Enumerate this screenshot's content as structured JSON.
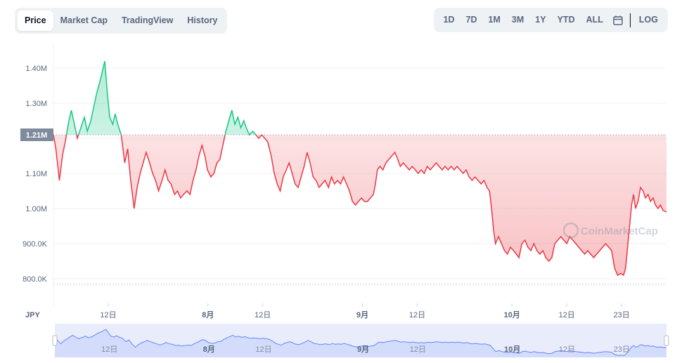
{
  "tabs": [
    "Price",
    "Market Cap",
    "TradingView",
    "History"
  ],
  "active_tab": 0,
  "ranges": [
    "1D",
    "7D",
    "1M",
    "3M",
    "1Y",
    "YTD",
    "ALL",
    "LOG"
  ],
  "icons": {
    "calendar": "calendar-icon"
  },
  "watermark": "CoinMarketCap",
  "colors": {
    "up": "#16c784",
    "down": "#ea3943",
    "nav": "#6188ff",
    "tag": "#808a9d"
  },
  "chart_data": {
    "type": "line",
    "currency": "JPY",
    "y_ticks": [
      "1.40M",
      "1.30M",
      "1.20M",
      "1.10M",
      "1.00M",
      "900.0K",
      "800.0K"
    ],
    "y_tick_values": [
      1400000,
      1300000,
      1200000,
      1100000,
      1000000,
      900000,
      800000
    ],
    "ylim": [
      730000,
      1470000
    ],
    "baseline_value": 1210000,
    "baseline_label": "1.21M",
    "x_ticks": [
      "12日",
      "8月",
      "12日",
      "9月",
      "12日",
      "10月",
      "12日",
      "23日"
    ],
    "x_tick_bold": [
      false,
      true,
      false,
      true,
      false,
      true,
      false,
      false
    ],
    "x_tick_days": [
      11,
      31,
      42,
      62,
      73,
      92,
      103,
      114
    ],
    "x_range_days": [
      0,
      123
    ],
    "series": [
      {
        "points": [
          [
            0,
            1210000
          ],
          [
            0.5,
            1170000
          ],
          [
            1.2,
            1080000
          ],
          [
            1.8,
            1150000
          ],
          [
            2.5,
            1200000
          ],
          [
            3.1,
            1250000
          ],
          [
            3.6,
            1280000
          ],
          [
            4.2,
            1240000
          ],
          [
            4.8,
            1200000
          ],
          [
            5.5,
            1230000
          ],
          [
            6.2,
            1260000
          ],
          [
            6.8,
            1220000
          ],
          [
            7.5,
            1250000
          ],
          [
            8.1,
            1290000
          ],
          [
            8.7,
            1330000
          ],
          [
            9.3,
            1360000
          ],
          [
            9.8,
            1390000
          ],
          [
            10.3,
            1420000
          ],
          [
            10.8,
            1330000
          ],
          [
            11.3,
            1260000
          ],
          [
            11.9,
            1240000
          ],
          [
            12.4,
            1270000
          ],
          [
            12.9,
            1240000
          ],
          [
            13.6,
            1210000
          ],
          [
            14.3,
            1130000
          ],
          [
            14.9,
            1170000
          ],
          [
            15.5,
            1080000
          ],
          [
            16.2,
            1000000
          ],
          [
            16.8,
            1060000
          ],
          [
            17.4,
            1100000
          ],
          [
            18.0,
            1130000
          ],
          [
            18.6,
            1160000
          ],
          [
            19.3,
            1130000
          ],
          [
            19.9,
            1100000
          ],
          [
            20.5,
            1080000
          ],
          [
            21.1,
            1050000
          ],
          [
            21.8,
            1080000
          ],
          [
            22.4,
            1110000
          ],
          [
            23.0,
            1080000
          ],
          [
            23.6,
            1070000
          ],
          [
            24.3,
            1040000
          ],
          [
            24.9,
            1050000
          ],
          [
            25.5,
            1030000
          ],
          [
            26.1,
            1040000
          ],
          [
            26.8,
            1050000
          ],
          [
            27.4,
            1040000
          ],
          [
            28.0,
            1080000
          ],
          [
            28.6,
            1110000
          ],
          [
            29.2,
            1150000
          ],
          [
            29.8,
            1180000
          ],
          [
            30.4,
            1150000
          ],
          [
            30.9,
            1110000
          ],
          [
            31.6,
            1090000
          ],
          [
            32.2,
            1100000
          ],
          [
            32.8,
            1130000
          ],
          [
            33.4,
            1140000
          ],
          [
            34.0,
            1180000
          ],
          [
            34.6,
            1220000
          ],
          [
            35.2,
            1250000
          ],
          [
            35.8,
            1280000
          ],
          [
            36.4,
            1240000
          ],
          [
            37.0,
            1260000
          ],
          [
            37.6,
            1230000
          ],
          [
            38.2,
            1250000
          ],
          [
            38.7,
            1230000
          ],
          [
            39.3,
            1210000
          ],
          [
            40.0,
            1220000
          ],
          [
            40.6,
            1210000
          ],
          [
            41.2,
            1200000
          ],
          [
            41.8,
            1210000
          ],
          [
            42.4,
            1200000
          ],
          [
            43.0,
            1190000
          ],
          [
            43.7,
            1150000
          ],
          [
            44.3,
            1100000
          ],
          [
            44.9,
            1070000
          ],
          [
            45.5,
            1050000
          ],
          [
            46.1,
            1090000
          ],
          [
            46.7,
            1110000
          ],
          [
            47.3,
            1130000
          ],
          [
            47.9,
            1100000
          ],
          [
            48.5,
            1070000
          ],
          [
            49.1,
            1060000
          ],
          [
            49.7,
            1090000
          ],
          [
            50.3,
            1120000
          ],
          [
            50.9,
            1160000
          ],
          [
            51.5,
            1130000
          ],
          [
            52.1,
            1090000
          ],
          [
            52.7,
            1080000
          ],
          [
            53.3,
            1060000
          ],
          [
            53.9,
            1070000
          ],
          [
            54.5,
            1080000
          ],
          [
            55.2,
            1060000
          ],
          [
            55.8,
            1090000
          ],
          [
            56.4,
            1070000
          ],
          [
            57.0,
            1080000
          ],
          [
            57.6,
            1070000
          ],
          [
            58.2,
            1090000
          ],
          [
            58.8,
            1070000
          ],
          [
            59.4,
            1050000
          ],
          [
            60.0,
            1020000
          ],
          [
            60.6,
            1010000
          ],
          [
            61.2,
            1020000
          ],
          [
            61.8,
            1030000
          ],
          [
            62.4,
            1020000
          ],
          [
            63.0,
            1020000
          ],
          [
            63.6,
            1030000
          ],
          [
            64.2,
            1040000
          ],
          [
            64.6,
            1070000
          ],
          [
            65.0,
            1110000
          ],
          [
            65.5,
            1120000
          ],
          [
            66.1,
            1110000
          ],
          [
            66.7,
            1130000
          ],
          [
            67.3,
            1140000
          ],
          [
            67.9,
            1150000
          ],
          [
            68.5,
            1160000
          ],
          [
            69.1,
            1140000
          ],
          [
            69.6,
            1120000
          ],
          [
            70.2,
            1130000
          ],
          [
            70.8,
            1120000
          ],
          [
            71.4,
            1110000
          ],
          [
            72.0,
            1120000
          ],
          [
            72.6,
            1110000
          ],
          [
            73.2,
            1100000
          ],
          [
            73.8,
            1110000
          ],
          [
            74.4,
            1100000
          ],
          [
            75.0,
            1120000
          ],
          [
            75.6,
            1110000
          ],
          [
            76.2,
            1120000
          ],
          [
            76.8,
            1130000
          ],
          [
            77.4,
            1120000
          ],
          [
            78.0,
            1110000
          ],
          [
            78.6,
            1120000
          ],
          [
            79.2,
            1110000
          ],
          [
            79.8,
            1120000
          ],
          [
            80.4,
            1110000
          ],
          [
            81.0,
            1120000
          ],
          [
            81.6,
            1110000
          ],
          [
            82.2,
            1100000
          ],
          [
            82.8,
            1110000
          ],
          [
            83.4,
            1090000
          ],
          [
            84.0,
            1080000
          ],
          [
            84.6,
            1090000
          ],
          [
            85.2,
            1080000
          ],
          [
            85.8,
            1070000
          ],
          [
            86.4,
            1080000
          ],
          [
            87.0,
            1060000
          ],
          [
            87.5,
            1050000
          ],
          [
            87.9,
            1000000
          ],
          [
            88.3,
            940000
          ],
          [
            88.7,
            900000
          ],
          [
            89.3,
            920000
          ],
          [
            89.9,
            900000
          ],
          [
            90.5,
            880000
          ],
          [
            91.1,
            870000
          ],
          [
            91.7,
            890000
          ],
          [
            92.3,
            880000
          ],
          [
            92.9,
            870000
          ],
          [
            93.4,
            860000
          ],
          [
            94.0,
            900000
          ],
          [
            94.6,
            910000
          ],
          [
            95.2,
            890000
          ],
          [
            95.8,
            880000
          ],
          [
            96.4,
            900000
          ],
          [
            97.0,
            880000
          ],
          [
            97.6,
            870000
          ],
          [
            98.2,
            880000
          ],
          [
            98.8,
            860000
          ],
          [
            99.4,
            850000
          ],
          [
            100.0,
            860000
          ],
          [
            100.6,
            900000
          ],
          [
            101.2,
            910000
          ],
          [
            101.8,
            920000
          ],
          [
            102.4,
            910000
          ],
          [
            103.0,
            900000
          ],
          [
            103.6,
            920000
          ],
          [
            104.2,
            910000
          ],
          [
            104.8,
            900000
          ],
          [
            105.4,
            890000
          ],
          [
            106.0,
            880000
          ],
          [
            106.6,
            870000
          ],
          [
            107.2,
            880000
          ],
          [
            107.8,
            870000
          ],
          [
            108.4,
            860000
          ],
          [
            109.0,
            870000
          ],
          [
            109.6,
            880000
          ],
          [
            110.2,
            890000
          ],
          [
            110.8,
            900000
          ],
          [
            111.4,
            890000
          ],
          [
            112.0,
            880000
          ],
          [
            112.6,
            830000
          ],
          [
            113.2,
            810000
          ],
          [
            113.8,
            815000
          ],
          [
            114.4,
            810000
          ],
          [
            114.8,
            830000
          ],
          [
            115.2,
            890000
          ],
          [
            115.6,
            950000
          ],
          [
            116.0,
            1010000
          ],
          [
            116.4,
            1040000
          ],
          [
            116.8,
            1000000
          ],
          [
            117.3,
            1020000
          ],
          [
            117.8,
            1060000
          ],
          [
            118.3,
            1050000
          ],
          [
            118.8,
            1030000
          ],
          [
            119.3,
            1040000
          ],
          [
            119.8,
            1020000
          ],
          [
            120.3,
            1030000
          ],
          [
            120.8,
            1010000
          ],
          [
            121.3,
            1000000
          ],
          [
            121.8,
            1010000
          ],
          [
            122.3,
            995000
          ],
          [
            123.0,
            990000
          ]
        ]
      }
    ],
    "grid": true,
    "legend": "none"
  }
}
